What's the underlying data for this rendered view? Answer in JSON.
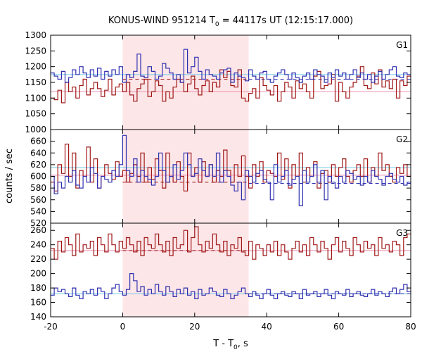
{
  "chart_data": {
    "type": "line",
    "title_main": "KONUS-WIND 951214 T",
    "title_sub": "0",
    "title_rest": " = 44117s UT (12:15:17.000)",
    "xlabel_main": "T - T",
    "xlabel_sub": "0",
    "xlabel_rest": ", s",
    "ylabel": "counts / sec",
    "xlim": [
      -20,
      80
    ],
    "xticks": [
      -20,
      0,
      20,
      40,
      60,
      80
    ],
    "shaded_interval": [
      0,
      35
    ],
    "colors": {
      "red": "#a01818",
      "blue": "#3030b0",
      "cyan": "#70c8e8",
      "pink": "#e890b0",
      "shade": "#fde6e8"
    },
    "panels": [
      {
        "label": "G1",
        "ylim": [
          1000,
          1300
        ],
        "yticks": [
          1050,
          1100,
          1150,
          1200,
          1250,
          1300
        ],
        "bottom_label": "1000",
        "levels": {
          "blue_fit": 1175,
          "red_fit": 1120,
          "blue_dash": 1160,
          "red_dash": 1160
        },
        "red": [
          1100,
          1095,
          1125,
          1085,
          1150,
          1120,
          1135,
          1100,
          1140,
          1160,
          1110,
          1130,
          1150,
          1130,
          1105,
          1125,
          1160,
          1110,
          1135,
          1145,
          1120,
          1150,
          1110,
          1090,
          1130,
          1145,
          1160,
          1105,
          1120,
          1155,
          1140,
          1090,
          1120,
          1100,
          1135,
          1160,
          1150,
          1120,
          1145,
          1170,
          1130,
          1110,
          1140,
          1155,
          1120,
          1150,
          1135,
          1190,
          1165,
          1185,
          1140,
          1135,
          1190,
          1100,
          1090,
          1115,
          1130,
          1100,
          1165,
          1140,
          1125,
          1110,
          1140,
          1090,
          1120,
          1150,
          1135,
          1100,
          1155,
          1130,
          1145,
          1120,
          1100,
          1170,
          1185,
          1130,
          1140,
          1145,
          1175,
          1090,
          1150,
          1120,
          1100,
          1135,
          1150,
          1170,
          1200,
          1140,
          1130,
          1180,
          1145,
          1190,
          1135,
          1155,
          1130,
          1160,
          1100,
          1155,
          1140,
          1170
        ],
        "blue": [
          1180,
          1170,
          1160,
          1185,
          1150,
          1165,
          1190,
          1175,
          1200,
          1180,
          1165,
          1190,
          1170,
          1195,
          1160,
          1185,
          1170,
          1190,
          1175,
          1200,
          1150,
          1175,
          1165,
          1185,
          1240,
          1170,
          1165,
          1200,
          1185,
          1160,
          1170,
          1210,
          1195,
          1180,
          1160,
          1175,
          1150,
          1255,
          1180,
          1200,
          1230,
          1185,
          1160,
          1190,
          1175,
          1170,
          1160,
          1180,
          1190,
          1195,
          1150,
          1180,
          1170,
          1165,
          1155,
          1190,
          1170,
          1160,
          1180,
          1185,
          1160,
          1150,
          1170,
          1180,
          1190,
          1175,
          1160,
          1180,
          1165,
          1150,
          1170,
          1180,
          1160,
          1190,
          1175,
          1170,
          1150,
          1180,
          1165,
          1190,
          1170,
          1180,
          1160,
          1175,
          1190,
          1165,
          1180,
          1160,
          1175,
          1150,
          1170,
          1185,
          1160,
          1175,
          1190,
          1200,
          1170,
          1165,
          1180,
          1175
        ]
      },
      {
        "label": "G2",
        "ylim": [
          520,
          680
        ],
        "yticks": [
          540,
          560,
          580,
          600,
          620,
          640,
          660
        ],
        "bottom_label": "520",
        "levels": {
          "blue_fit": 615,
          "red_fit": 602,
          "blue_dash": 588,
          "red_dash": 590
        },
        "red": [
          590,
          575,
          620,
          605,
          655,
          600,
          640,
          580,
          610,
          600,
          650,
          590,
          630,
          580,
          600,
          620,
          605,
          595,
          625,
          600,
          610,
          590,
          605,
          620,
          600,
          640,
          590,
          615,
          595,
          630,
          610,
          580,
          640,
          600,
          590,
          625,
          600,
          575,
          640,
          600,
          615,
          590,
          625,
          600,
          620,
          590,
          610,
          600,
          645,
          610,
          590,
          620,
          600,
          635,
          600,
          580,
          620,
          600,
          625,
          590,
          610,
          605,
          600,
          640,
          595,
          630,
          580,
          620,
          600,
          640,
          590,
          615,
          600,
          625,
          580,
          605,
          610,
          590,
          620,
          600,
          615,
          630,
          600,
          590,
          610,
          620,
          600,
          630,
          590,
          615,
          600,
          640,
          610,
          620,
          600,
          590,
          615,
          605,
          620,
          600
        ],
        "blue": [
          600,
          570,
          590,
          580,
          600,
          590,
          610,
          585,
          580,
          600,
          590,
          615,
          605,
          580,
          600,
          595,
          590,
          610,
          600,
          620,
          670,
          610,
          600,
          630,
          590,
          610,
          600,
          595,
          585,
          600,
          640,
          610,
          590,
          600,
          620,
          595,
          610,
          640,
          620,
          600,
          605,
          630,
          610,
          600,
          620,
          600,
          640,
          590,
          610,
          600,
          585,
          575,
          590,
          560,
          610,
          600,
          590,
          605,
          610,
          595,
          590,
          560,
          620,
          590,
          600,
          610,
          585,
          595,
          600,
          550,
          610,
          590,
          600,
          620,
          590,
          610,
          560,
          600,
          590,
          580,
          600,
          590,
          610,
          605,
          595,
          600,
          585,
          600,
          590,
          610,
          600,
          595,
          585,
          600,
          605,
          595,
          590,
          600,
          585,
          590
        ]
      },
      {
        "label": "G3",
        "ylim": [
          140,
          270
        ],
        "yticks": [
          140,
          160,
          180,
          200,
          220,
          240,
          260
        ],
        "bottom_label": "",
        "levels": {
          "blue_fit": 172,
          "red_fit": 232,
          "blue_dash": 172,
          "red_dash": 232
        },
        "red": [
          235,
          220,
          245,
          230,
          250,
          240,
          225,
          255,
          230,
          240,
          235,
          245,
          225,
          250,
          240,
          230,
          255,
          240,
          230,
          245,
          235,
          250,
          240,
          230,
          245,
          225,
          250,
          240,
          235,
          255,
          240,
          230,
          245,
          225,
          250,
          235,
          240,
          260,
          230,
          250,
          265,
          240,
          230,
          245,
          235,
          255,
          240,
          230,
          245,
          225,
          240,
          235,
          250,
          230,
          225,
          245,
          220,
          240,
          235,
          225,
          240,
          230,
          245,
          225,
          240,
          230,
          220,
          235,
          245,
          230,
          240,
          225,
          250,
          240,
          230,
          245,
          235,
          220,
          240,
          250,
          230,
          245,
          235,
          225,
          250,
          240,
          230,
          245,
          235,
          240,
          225,
          250,
          235,
          240,
          230,
          245,
          240,
          225,
          250,
          255
        ],
        "blue": [
          170,
          180,
          175,
          178,
          172,
          168,
          180,
          170,
          165,
          175,
          172,
          178,
          170,
          180,
          175,
          165,
          172,
          180,
          185,
          175,
          170,
          178,
          200,
          190,
          175,
          182,
          170,
          178,
          172,
          185,
          175,
          170,
          182,
          175,
          168,
          178,
          172,
          180,
          170,
          175,
          165,
          178,
          170,
          172,
          180,
          175,
          170,
          168,
          178,
          172,
          165,
          170,
          175,
          180,
          172,
          168,
          175,
          170,
          165,
          172,
          178,
          170,
          165,
          172,
          175,
          170,
          168,
          175,
          172,
          165,
          178,
          170,
          172,
          175,
          168,
          172,
          178,
          170,
          165,
          175,
          172,
          170,
          178,
          168,
          172,
          175,
          170,
          168,
          172,
          178,
          170,
          175,
          172,
          168,
          175,
          180,
          172,
          178,
          185,
          175
        ]
      }
    ]
  }
}
